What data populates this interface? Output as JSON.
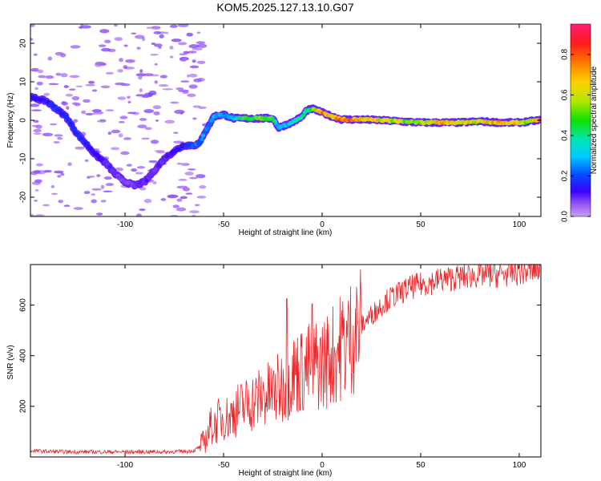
{
  "chart_data": [
    {
      "type": "heatmap",
      "title": "KOM5.2025.127.13.10.G07",
      "xlabel": "Height of straight line (km)",
      "ylabel": "Frequency (Hz)",
      "xlim": [
        -148,
        111
      ],
      "ylim": [
        -25,
        25
      ],
      "xticks": [
        -100,
        -50,
        0,
        50,
        100
      ],
      "yticks": [
        -20,
        -10,
        0,
        10,
        20
      ],
      "colorbar": {
        "label": "Normalized spectral amplitude",
        "range": [
          0.0,
          0.95
        ],
        "ticks": [
          0.0,
          0.2,
          0.4,
          0.6,
          0.8
        ],
        "colormap": "rainbow"
      },
      "ridge": {
        "name": "dominant frequency",
        "x": [
          -148,
          -140,
          -135,
          -130,
          -125,
          -120,
          -115,
          -110,
          -105,
          -100,
          -95,
          -90,
          -85,
          -80,
          -75,
          -70,
          -65,
          -62,
          -60,
          -57,
          -55,
          -50,
          -45,
          -40,
          -35,
          -30,
          -25,
          -22,
          -20,
          -15,
          -10,
          -8,
          -5,
          0,
          5,
          10,
          20,
          30,
          40,
          50,
          60,
          70,
          80,
          90,
          100,
          105,
          110
        ],
        "y": [
          6,
          5,
          3,
          1,
          -3,
          -6,
          -9,
          -11,
          -14,
          -16,
          -17,
          -16,
          -13,
          -10,
          -8,
          -6.5,
          -6.5,
          -6,
          -3.5,
          -1,
          1,
          1.5,
          0.5,
          0.5,
          0.5,
          0.5,
          0.5,
          -2,
          -1.5,
          -0.5,
          1,
          2.5,
          3,
          2,
          1,
          0.2,
          0.2,
          0,
          -0.3,
          -0.6,
          -0.6,
          -0.6,
          -0.3,
          -0.6,
          -0.6,
          -0.3,
          0
        ],
        "amplitude": [
          0.15,
          0.18,
          0.2,
          0.18,
          0.2,
          0.18,
          0.15,
          0.12,
          0.1,
          0.08,
          0.1,
          0.12,
          0.1,
          0.12,
          0.15,
          0.2,
          0.25,
          0.28,
          0.3,
          0.3,
          0.35,
          0.3,
          0.3,
          0.55,
          0.5,
          0.6,
          0.55,
          0.3,
          0.35,
          0.4,
          0.45,
          0.5,
          0.55,
          0.85,
          0.8,
          0.9,
          0.8,
          0.7,
          0.65,
          0.6,
          0.8,
          0.75,
          0.7,
          0.8,
          0.75,
          0.6,
          0.9
        ]
      }
    },
    {
      "type": "line",
      "xlabel": "Height of straight line (km)",
      "ylabel": "SNR (v/v)",
      "xlim": [
        -148,
        111
      ],
      "ylim": [
        0,
        760
      ],
      "xticks": [
        -100,
        -50,
        0,
        50,
        100
      ],
      "yticks": [
        200,
        400,
        600
      ],
      "color": "#e8262a",
      "series": [
        {
          "x": [
            -148,
            -140,
            -130,
            -120,
            -110,
            -100,
            -90,
            -80,
            -70,
            -65,
            -62,
            -60,
            -58,
            -56,
            -55,
            -52,
            -50,
            -47,
            -45,
            -42,
            -40,
            -35,
            -30,
            -25,
            -20,
            -18,
            -15,
            -10,
            -5,
            0,
            5,
            10,
            15,
            20,
            25,
            30,
            35,
            40,
            45,
            50,
            55,
            60,
            70,
            80,
            90,
            100,
            105,
            110
          ],
          "y": [
            25,
            22,
            20,
            20,
            20,
            20,
            20,
            20,
            22,
            25,
            40,
            60,
            90,
            130,
            120,
            150,
            160,
            150,
            180,
            190,
            200,
            220,
            240,
            250,
            280,
            300,
            330,
            340,
            360,
            370,
            400,
            440,
            480,
            520,
            560,
            600,
            630,
            650,
            670,
            680,
            690,
            700,
            710,
            720,
            720,
            730,
            735,
            740
          ]
        }
      ],
      "annotations": [
        {
          "x": -18,
          "y": 625,
          "note": "spike"
        },
        {
          "x": -5,
          "y": 605,
          "note": "spike"
        }
      ]
    }
  ]
}
